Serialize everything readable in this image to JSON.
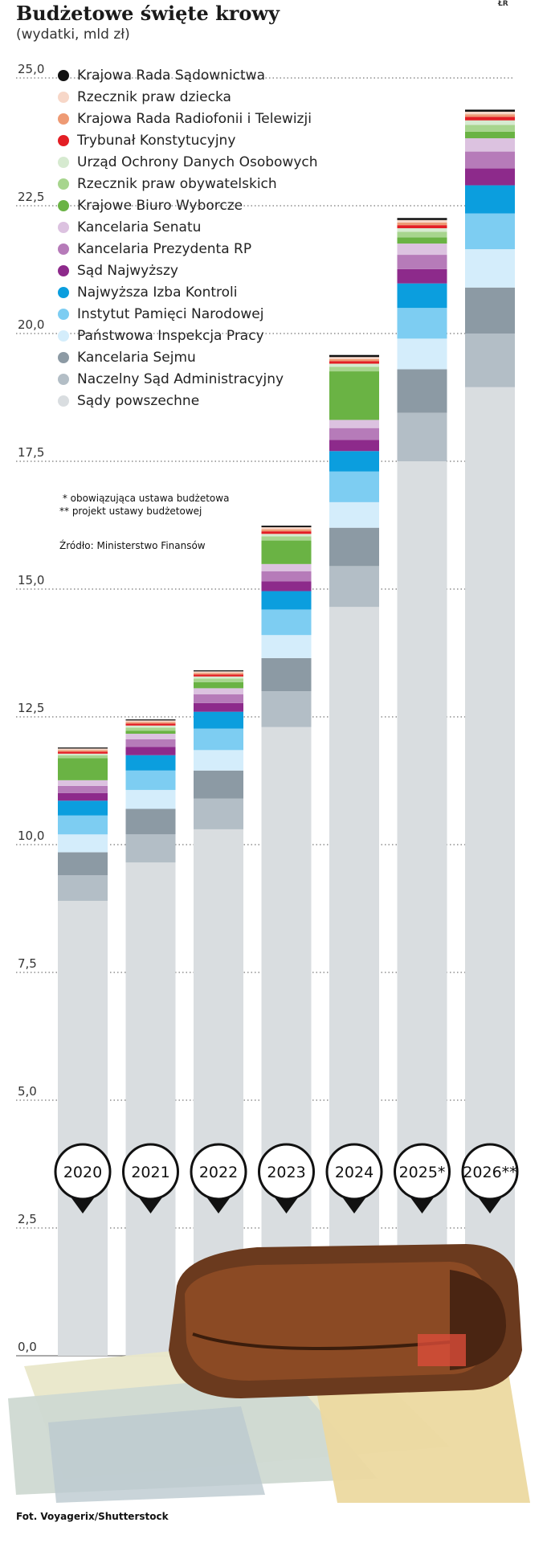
{
  "header": {
    "title": "Budżetowe święte krowy",
    "subtitle": "(wydatki, mld zł)",
    "signature": "ŁR"
  },
  "notes": {
    "note1": " * obowiązująca ustawa budżetowa",
    "note2": "** projekt ustawy budżetowej",
    "source": "Źródło: Ministerstwo Finansów",
    "photo_credit": "Fot.  Voyagerix/Shutterstock"
  },
  "colors": {
    "Krajowa Rada Sądownictwa": "#111111",
    "Rzecznik praw dziecka": "#f7d7c8",
    "Krajowa Rada Radiofonii i Telewizji": "#ee9a74",
    "Trybunał Konstytucyjny": "#e31e24",
    "Urząd Ochrony Danych Osobowych": "#d6ead0",
    "Rzecznik praw obywatelskich": "#a7d58e",
    "Krajowe Biuro Wyborcze": "#6ab344",
    "Kancelaria Senatu": "#dcc2e0",
    "Kancelaria Prezydenta RP": "#b67bb9",
    "Sąd Najwyższy": "#8d2a8b",
    "Najwyższa Izba Kontroli": "#0b9ede",
    "Instytut Pamięci Narodowej": "#7dcdf2",
    "Państwowa Inspekcja Pracy": "#d4edfb",
    "Kancelaria Sejmu": "#8c9aa4",
    "Naczelny Sąd Administracyjny": "#b3bec6",
    "Sądy powszechne": "#d9dde0"
  },
  "chart_data": {
    "type": "bar",
    "stacked": true,
    "title": "Budżetowe święte krowy",
    "ylabel": "",
    "ylim": [
      0,
      25
    ],
    "yticks": [
      "0,0",
      "2,5",
      "5,0",
      "7,5",
      "10,0",
      "12,5",
      "15,0",
      "17,5",
      "20,0",
      "22,5",
      "25,0"
    ],
    "grid": true,
    "legend_position": "top-left",
    "categories": [
      "2020",
      "2021",
      "2022",
      "2023",
      "2024",
      "2025*",
      "2026**"
    ],
    "series": [
      {
        "name": "Sądy powszechne",
        "values": [
          8.9,
          9.65,
          10.3,
          12.3,
          14.65,
          17.5,
          18.95
        ]
      },
      {
        "name": "Naczelny Sąd Administracyjny",
        "values": [
          0.5,
          0.55,
          0.6,
          0.7,
          0.8,
          0.95,
          1.05
        ]
      },
      {
        "name": "Kancelaria Sejmu",
        "values": [
          0.45,
          0.5,
          0.55,
          0.65,
          0.75,
          0.85,
          0.9
        ]
      },
      {
        "name": "Państwowa Inspekcja Pracy",
        "values": [
          0.35,
          0.37,
          0.4,
          0.45,
          0.5,
          0.6,
          0.75
        ]
      },
      {
        "name": "Instytut Pamięci Narodowej",
        "values": [
          0.37,
          0.38,
          0.42,
          0.5,
          0.6,
          0.6,
          0.7
        ]
      },
      {
        "name": "Najwyższa Izba Kontroli",
        "values": [
          0.29,
          0.3,
          0.33,
          0.36,
          0.4,
          0.48,
          0.55
        ]
      },
      {
        "name": "Sąd Najwyższy",
        "values": [
          0.15,
          0.16,
          0.17,
          0.19,
          0.22,
          0.28,
          0.33
        ]
      },
      {
        "name": "Kancelaria Prezydenta RP",
        "values": [
          0.14,
          0.15,
          0.17,
          0.2,
          0.23,
          0.28,
          0.33
        ]
      },
      {
        "name": "Kancelaria Senatu",
        "values": [
          0.11,
          0.11,
          0.12,
          0.14,
          0.16,
          0.22,
          0.26
        ]
      },
      {
        "name": "Krajowe Biuro Wyborcze",
        "values": [
          0.43,
          0.06,
          0.12,
          0.46,
          0.95,
          0.12,
          0.13
        ]
      },
      {
        "name": "Rzecznik praw obywatelskich",
        "values": [
          0.06,
          0.06,
          0.07,
          0.08,
          0.09,
          0.11,
          0.13
        ]
      },
      {
        "name": "Urząd Ochrony Danych Osobowych",
        "values": [
          0.03,
          0.04,
          0.04,
          0.05,
          0.06,
          0.07,
          0.09
        ]
      },
      {
        "name": "Trybunał Konstytucyjny",
        "values": [
          0.04,
          0.04,
          0.04,
          0.05,
          0.05,
          0.06,
          0.07
        ]
      },
      {
        "name": "Krajowa Rada Radiofonii i Telewizji",
        "values": [
          0.03,
          0.03,
          0.03,
          0.04,
          0.04,
          0.05,
          0.05
        ]
      },
      {
        "name": "Rzecznik praw dziecka",
        "values": [
          0.03,
          0.03,
          0.03,
          0.04,
          0.04,
          0.05,
          0.05
        ]
      },
      {
        "name": "Krajowa Rada Sądownictwa",
        "values": [
          0.02,
          0.02,
          0.02,
          0.03,
          0.04,
          0.04,
          0.04
        ]
      }
    ],
    "legend_order": [
      "Krajowa Rada Sądownictwa",
      "Rzecznik praw dziecka",
      "Krajowa Rada Radiofonii i Telewizji",
      "Trybunał Konstytucyjny",
      "Urząd Ochrony Danych Osobowych",
      "Rzecznik praw obywatelskich",
      "Krajowe Biuro Wyborcze",
      "Kancelaria Senatu",
      "Kancelaria Prezydenta RP",
      "Sąd Najwyższy",
      "Najwyższa Izba Kontroli",
      "Instytut Pamięci Narodowej",
      "Państwowa Inspekcja Pracy",
      "Kancelaria Sejmu",
      "Naczelny Sąd Administracyjny",
      "Sądy powszechne"
    ]
  }
}
